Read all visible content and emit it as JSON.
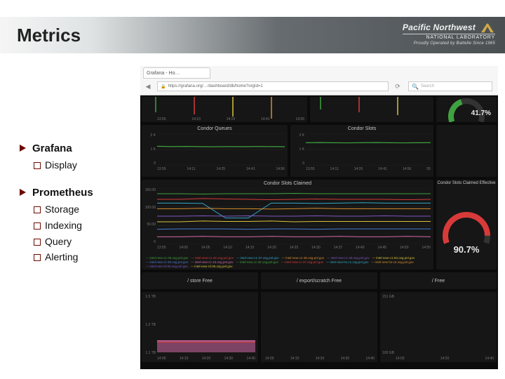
{
  "title": "Metrics",
  "logo": {
    "line1": "Pacific Northwest",
    "line2": "NATIONAL LABORATORY",
    "tagline": "Proudly Operated by Battelle Since 1965"
  },
  "outline": [
    {
      "label": "Grafana",
      "children": [
        "Display"
      ]
    },
    {
      "label": "Prometheus",
      "children": [
        "Storage",
        "Indexing",
        "Query",
        "Alerting"
      ]
    }
  ],
  "browser": {
    "tab_label": "Grafana - Ho…",
    "url": "https://grafana.org/…/dashboard/db/home?orgId=1",
    "search_placeholder": "Search",
    "reload_icon": "⟳"
  },
  "colors": {
    "bg_dash": "#0b0b0b",
    "panel_bg": "#161616",
    "line_green": "#3fa13f",
    "line_orange": "#d98e2b",
    "line_red": "#d83a3a",
    "line_cyan": "#2fa7c9",
    "line_purple": "#7e57c2",
    "line_pink": "#d46aa8",
    "line_yellow": "#d6c23a",
    "line_blue": "#4a7bd8",
    "gauge_fill_g": "#3fa13f",
    "gauge_fill_r": "#d83a3a",
    "gauge_track": "#333333",
    "ylab": "#777777",
    "title_text": "#c8c8c8"
  },
  "top_cut": {
    "xticks": [
      "13:55",
      "14:10",
      "14:25",
      "14:41",
      "14:55"
    ],
    "spikes_colors": [
      "#3fa13f",
      "#d83a3a",
      "#d6c23a",
      "#d98e2b"
    ]
  },
  "condor_queues": {
    "title": "Condor Queues",
    "yticks": [
      "2 K",
      "1 K",
      "0"
    ],
    "xticks": [
      "13:55",
      "14:11",
      "14:25",
      "14:41",
      "14:56"
    ],
    "line_color": "#3fa13f",
    "y": [
      1200,
      1180,
      1190,
      1180,
      1170,
      1180,
      1175,
      1185,
      1180,
      1175
    ]
  },
  "condor_slots": {
    "title": "Condor Slots",
    "yticks": [
      "2 K",
      "1 K",
      "0"
    ],
    "xticks": [
      "13:55",
      "14:11",
      "14:26",
      "14:41",
      "14:56",
      "55"
    ],
    "line_color": "#3fa13f",
    "y": [
      1420,
      1430,
      1420,
      1410,
      1420,
      1430,
      1420,
      1410,
      1420,
      1425
    ]
  },
  "gauge_top": {
    "percent": 41.7,
    "color": "#3fa13f",
    "label": "41.7%"
  },
  "claimed_big": {
    "title": "Condor Slots Claimed",
    "yticks": [
      "150.00",
      "100.00",
      "50.00",
      "0"
    ],
    "xticks": [
      "13:55",
      "14:00",
      "14:05",
      "14:10",
      "14:15",
      "14:20",
      "14:25",
      "14:30",
      "14:37",
      "14:40",
      "14:45",
      "14:50",
      "14:55"
    ],
    "series": [
      {
        "name": "intel-new-c1-30.osg.pnl.gov",
        "color": "#3fa13f",
        "y": [
          135,
          135,
          134,
          135,
          135,
          135,
          136,
          135,
          135,
          135,
          135,
          135,
          135
        ]
      },
      {
        "name": "intel-new-c1-32.osg.pnl.gov",
        "color": "#d83a3a",
        "y": [
          120,
          120,
          122,
          121,
          120,
          119,
          120,
          121,
          120,
          120,
          120,
          119,
          120
        ]
      },
      {
        "name": "intel-new-c1-37.osg.pnl.gov",
        "color": "#2fa7c9",
        "y": [
          110,
          110,
          109,
          70,
          70,
          110,
          110,
          109,
          110,
          111,
          110,
          110,
          110
        ]
      },
      {
        "name": "intel-new-c1-39.osg.pnl.gov",
        "color": "#d98e2b",
        "y": [
          95,
          95,
          96,
          95,
          95,
          94,
          95,
          96,
          95,
          95,
          95,
          95,
          95
        ]
      },
      {
        "name": "intel-new-c1-40.osg.pnl.gov",
        "color": "#7e57c2",
        "y": [
          75,
          75,
          76,
          75,
          76,
          75,
          75,
          76,
          75,
          75,
          76,
          75,
          75
        ]
      },
      {
        "name": "intel-new-c1-53.osg.pnl.gov",
        "color": "#d6c23a",
        "y": [
          60,
          60,
          62,
          61,
          61,
          62,
          60,
          61,
          61,
          61,
          61,
          61,
          61
        ]
      },
      {
        "name": "intel-new-cc-30.osg.pnl.gov",
        "color": "#4a7bd8",
        "y": [
          40,
          41,
          41,
          41,
          40,
          41,
          41,
          40,
          41,
          41,
          41,
          41,
          41
        ]
      },
      {
        "name": "intel-new-cc-13.osg.pnl.gov",
        "color": "#d46aa8",
        "y": [
          20,
          20,
          21,
          20,
          20,
          21,
          20,
          20,
          21,
          20,
          20,
          21,
          20
        ]
      }
    ],
    "legend": [
      "intel-new-c1-30.osg.pnl.gov",
      "intel-new-c1-32.osg.pnl.gov",
      "intel-new-c1-37.osg.pnl.gov",
      "intel-new-c1-39.osg.pnl.gov",
      "intel-new-c1-40.osg.pnl.gov",
      "intel-new-c1-53.osg.pnl.gov",
      "intel-new-cc-30.osg.pnl.gov",
      "intel-new-cc-13.osg.pnl.gov",
      "intel-new-cc-32.osg.pnl.gov",
      "intel-new-cc-37.osg.pnl.gov",
      "intel-new-hs-c1.osg.pnl.gov",
      "intel-new-hs-c2.osg.pnl.gov",
      "intel-new-rd-05.osg.pnl.gov",
      "intel-new-rd-06.osg.pnl.gov"
    ]
  },
  "claimed_small_title": "Condor Slots Claimed Effective",
  "gauge_bot": {
    "percent": 90.7,
    "color": "#d83a3a",
    "label": "90.7%"
  },
  "row4_labels": [
    "/ store Free",
    "/ export/scratch Free",
    "/ Free"
  ],
  "mini_left": {
    "yticks": [
      "1.5 TB",
      "1.3 TB",
      "1.1 TB"
    ],
    "xticks": [
      "14:00",
      "14:10",
      "14:20",
      "14:30",
      "14:40"
    ],
    "fill_color": "#d46aa8",
    "baseline": 1.18,
    "ymax": 1.5,
    "ymin": 1.1
  },
  "mini_mid": {
    "xticks": [
      "14:00",
      "14:10",
      "14:20",
      "14:30",
      "14:40"
    ]
  },
  "mini_right": {
    "yticks": [
      "151 GB",
      "100 GB"
    ],
    "xticks": [
      "14:00",
      "14:20",
      "14:40"
    ]
  }
}
